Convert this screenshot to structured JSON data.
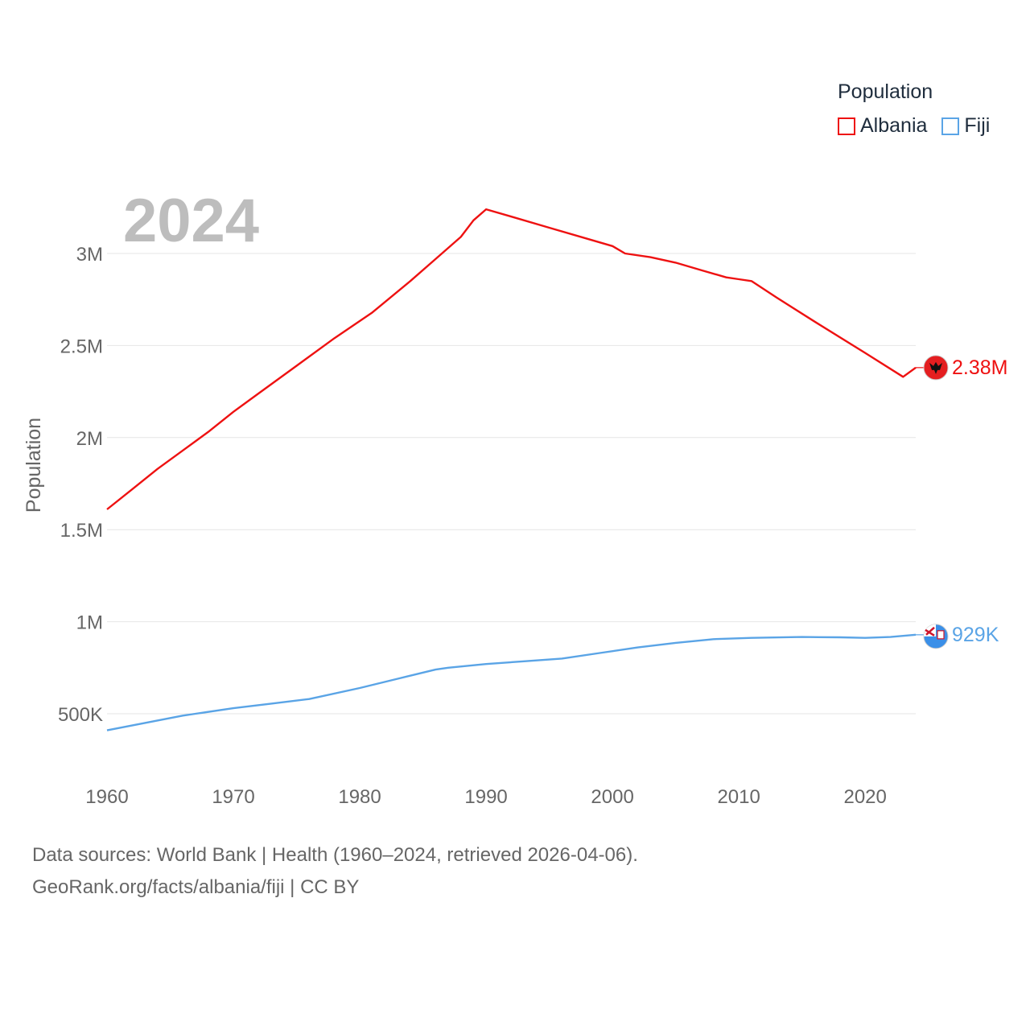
{
  "chart_data": {
    "type": "line",
    "year_label": "2024",
    "ylabel": "Population",
    "xlabel": "",
    "xlim": [
      1960,
      2024
    ],
    "ylim": [
      250000,
      3450000
    ],
    "x_ticks": [
      1960,
      1970,
      1980,
      1990,
      2000,
      2010,
      2020
    ],
    "y_ticks": [
      {
        "value": 500000,
        "label": "500K"
      },
      {
        "value": 1000000,
        "label": "1M"
      },
      {
        "value": 1500000,
        "label": "1.5M"
      },
      {
        "value": 2000000,
        "label": "2M"
      },
      {
        "value": 2500000,
        "label": "2.5M"
      },
      {
        "value": 3000000,
        "label": "3M"
      }
    ],
    "grid": true,
    "legend": {
      "title": "Population",
      "placement": "top-right"
    },
    "series": [
      {
        "name": "Albania",
        "color": "#ee1111",
        "end_label": "2.38M",
        "flag_icon": "albania-flag-icon",
        "x": [
          1960,
          1962,
          1964,
          1966,
          1967,
          1968,
          1970,
          1972,
          1975,
          1978,
          1981,
          1984,
          1986,
          1988,
          1989,
          1990,
          1992,
          1995,
          1998,
          2000,
          2001,
          2003,
          2005,
          2007,
          2009,
          2010,
          2011,
          2013,
          2016,
          2020,
          2023,
          2024
        ],
        "values": [
          1610000,
          1720000,
          1830000,
          1930000,
          1980000,
          2030000,
          2140000,
          2240000,
          2390000,
          2540000,
          2680000,
          2850000,
          2970000,
          3090000,
          3180000,
          3240000,
          3200000,
          3140000,
          3080000,
          3040000,
          3000000,
          2980000,
          2950000,
          2910000,
          2870000,
          2860000,
          2850000,
          2760000,
          2630000,
          2460000,
          2330000,
          2380000
        ]
      },
      {
        "name": "Fiji",
        "color": "#5aa4e6",
        "end_label": "929K",
        "flag_icon": "fiji-flag-icon",
        "x": [
          1960,
          1963,
          1966,
          1967,
          1970,
          1973,
          1976,
          1980,
          1983,
          1986,
          1987,
          1990,
          1993,
          1996,
          1999,
          2002,
          2005,
          2008,
          2011,
          2015,
          2018,
          2020,
          2022,
          2024
        ],
        "values": [
          410000,
          450000,
          490000,
          500000,
          530000,
          555000,
          580000,
          640000,
          690000,
          740000,
          750000,
          770000,
          785000,
          800000,
          830000,
          860000,
          885000,
          905000,
          912000,
          917000,
          915000,
          912000,
          917000,
          929000
        ]
      }
    ]
  },
  "source": {
    "line1": "Data sources: World Bank | Health (1960–2024, retrieved 2026-04-06).",
    "link": "GeoRank.org/facts/albania/fiji",
    "license": " | CC BY"
  }
}
